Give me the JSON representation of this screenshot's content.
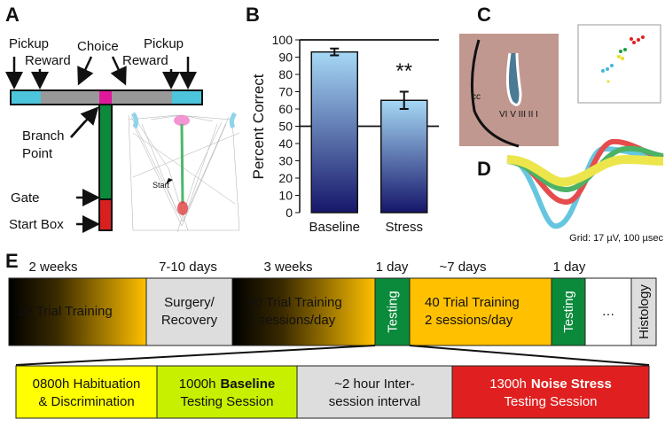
{
  "panels": {
    "a": "A",
    "b": "B",
    "c": "C",
    "d": "D",
    "e": "E"
  },
  "maze": {
    "pickup_left": "Pickup",
    "reward_left": "Reward",
    "choice": "Choice",
    "pickup_right": "Pickup",
    "reward_right": "Reward",
    "branch_point": [
      "Branch",
      "Point"
    ],
    "start": "Start",
    "gate": "Gate",
    "start_box": "Start Box"
  },
  "chart_data": {
    "type": "bar",
    "ylabel": "Percent Correct",
    "categories": [
      "Baseline",
      "Stress"
    ],
    "values": [
      93,
      65
    ],
    "errors": [
      2,
      5
    ],
    "annotation": "**",
    "reference_lines": [
      100,
      50
    ],
    "gradient": [
      "#a6d8f5",
      "#16166a"
    ],
    "ylim": [
      0,
      100
    ],
    "yticks": [
      0,
      10,
      20,
      30,
      40,
      50,
      60,
      70,
      80,
      90,
      100
    ]
  },
  "histology": {
    "cc": "cc",
    "layers": "VI V III II I"
  },
  "waveforms": {
    "grid": "Grid: 17 µV, 100 µsec"
  },
  "timeline": {
    "durations": [
      "2 weeks",
      "7-10 days",
      "3 weeks",
      "1 day",
      "~7 days",
      "1 day"
    ],
    "stages": [
      [
        "10 Trial Training"
      ],
      [
        "Surgery/",
        "Recovery"
      ],
      [
        "40 Trial Training",
        "2 sessions/day"
      ],
      [
        "Testing"
      ],
      [
        "40 Trial Training",
        "2 sessions/day"
      ],
      [
        "Testing"
      ],
      [
        "…"
      ],
      [
        "Histology"
      ]
    ]
  },
  "session": [
    {
      "lines": [
        "0800h Habituation",
        "& Discrimination"
      ]
    },
    {
      "time": "1000h",
      "bold": "Baseline",
      "line2": "Testing Session"
    },
    {
      "lines": [
        "~2 hour Inter-",
        "session interval"
      ]
    },
    {
      "time": "1300h",
      "bold": "Noise Stress",
      "line2": "Testing Session"
    }
  ]
}
